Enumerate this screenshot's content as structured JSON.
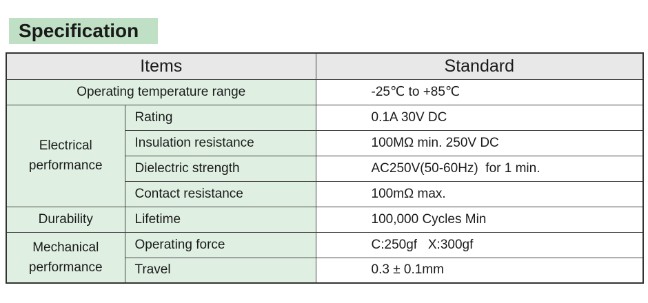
{
  "title": "Specification",
  "table": {
    "headers": {
      "items": "Items",
      "standard": "Standard"
    },
    "operating_temperature": {
      "label": "Operating temperature range",
      "value": "-25℃ to +85℃"
    },
    "electrical": {
      "group_line1": "Electrical",
      "group_line2": "performance",
      "rows": [
        {
          "item": "Rating",
          "value": "0.1A 30V DC"
        },
        {
          "item": "Insulation resistance",
          "value": "100MΩ min. 250V DC"
        },
        {
          "item": "Dielectric strength",
          "value": "AC250V(50-60Hz)  for 1 min."
        },
        {
          "item": "Contact resistance",
          "value": "100mΩ max."
        }
      ]
    },
    "durability": {
      "group": "Durability",
      "item": "Lifetime",
      "value": "100,000 Cycles Min"
    },
    "mechanical": {
      "group_line1": "Mechanical",
      "group_line2": "performance",
      "rows": [
        {
          "item": "Operating force",
          "value": "C:250gf   X:300gf"
        },
        {
          "item": "Travel",
          "value": "0.3 ± 0.1mm"
        }
      ]
    }
  },
  "colors": {
    "title_bg": "#bfe0c4",
    "items_bg": "#dff0e2",
    "header_bg": "#e8e8e8"
  }
}
